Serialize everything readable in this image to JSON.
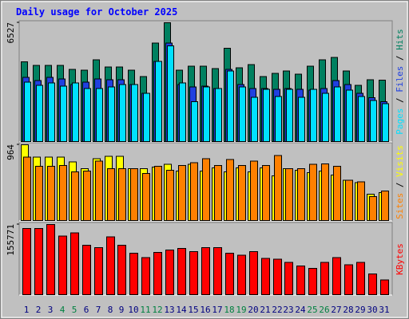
{
  "title": "Daily usage for October 2025",
  "legend_separator": " / ",
  "chart_data": [
    {
      "type": "bar",
      "ylim": [
        0,
        6527
      ],
      "yticks": [
        6527
      ],
      "series": [
        {
          "name": "Hits",
          "color": "#008060",
          "values": [
            4370,
            4190,
            4190,
            4190,
            3970,
            3930,
            4500,
            4100,
            4100,
            3930,
            3570,
            5420,
            6527,
            3930,
            4150,
            4150,
            4010,
            5120,
            4060,
            4230,
            3570,
            3750,
            3880,
            3700,
            4150,
            4500,
            4630,
            3880,
            3090,
            3400,
            3380
          ]
        },
        {
          "name": "Files",
          "color": "#2040e0",
          "values": [
            3530,
            3350,
            3530,
            3440,
            3130,
            3260,
            3440,
            3390,
            3390,
            3130,
            2650,
            4410,
            5420,
            3130,
            3000,
            3040,
            2910,
            3970,
            3130,
            2910,
            2910,
            2870,
            2910,
            2870,
            2830,
            2910,
            3350,
            3130,
            2650,
            2400,
            2200
          ]
        },
        {
          "name": "Pages",
          "color": "#00e0ff",
          "values": [
            3260,
            3090,
            3220,
            3040,
            3220,
            2910,
            2910,
            3000,
            3130,
            3130,
            2650,
            4410,
            5250,
            3220,
            2200,
            3000,
            2910,
            3880,
            3000,
            2430,
            2870,
            2470,
            2870,
            2430,
            2870,
            2650,
            3000,
            2820,
            2470,
            2250,
            2070
          ]
        }
      ]
    },
    {
      "type": "bar",
      "ylim": [
        0,
        964
      ],
      "yticks": [
        964
      ],
      "series": [
        {
          "name": "Visits",
          "color": "#ffff00",
          "values": [
            964,
            807,
            807,
            807,
            744,
            660,
            786,
            817,
            817,
            660,
            660,
            681,
            713,
            629,
            713,
            629,
            671,
            618,
            671,
            618,
            671,
            566,
            660,
            639,
            608,
            629,
            576,
            514,
            482,
            335,
            356
          ]
        },
        {
          "name": "Sites",
          "color": "#ff8000",
          "values": [
            807,
            692,
            692,
            702,
            618,
            629,
            755,
            660,
            660,
            660,
            597,
            692,
            639,
            702,
            734,
            786,
            702,
            776,
            702,
            755,
            702,
            828,
            660,
            660,
            713,
            723,
            692,
            514,
            493,
            304,
            377
          ]
        }
      ]
    },
    {
      "type": "bar",
      "ylim": [
        0,
        155771
      ],
      "yticks": [
        155771
      ],
      "categories": [
        "1",
        "2",
        "3",
        "4",
        "5",
        "6",
        "7",
        "8",
        "9",
        "10",
        "11",
        "12",
        "13",
        "14",
        "15",
        "16",
        "17",
        "18",
        "19",
        "20",
        "21",
        "22",
        "23",
        "24",
        "25",
        "26",
        "27",
        "28",
        "29",
        "30",
        "31"
      ],
      "label_colors": [
        "#000080",
        "#000080",
        "#000080",
        "#008040",
        "#008040",
        "#000080",
        "#000080",
        "#000080",
        "#000080",
        "#000080",
        "#008040",
        "#008040",
        "#000080",
        "#000080",
        "#000080",
        "#000080",
        "#000080",
        "#008040",
        "#008040",
        "#000080",
        "#000080",
        "#000080",
        "#000080",
        "#000080",
        "#008040",
        "#008040",
        "#000080",
        "#000080",
        "#000080",
        "#000080",
        "#000080"
      ],
      "series": [
        {
          "name": "KBytes",
          "color": "#ff0000",
          "values": [
            146640,
            146640,
            155771,
            130140,
            137480,
            109980,
            104480,
            128310,
            109980,
            91650,
            82490,
            93480,
            98980,
            102650,
            95320,
            104480,
            104480,
            91650,
            87980,
            95320,
            80650,
            78820,
            71490,
            64160,
            58660,
            71490,
            82490,
            65990,
            71490,
            45830,
            32990
          ]
        }
      ]
    }
  ]
}
